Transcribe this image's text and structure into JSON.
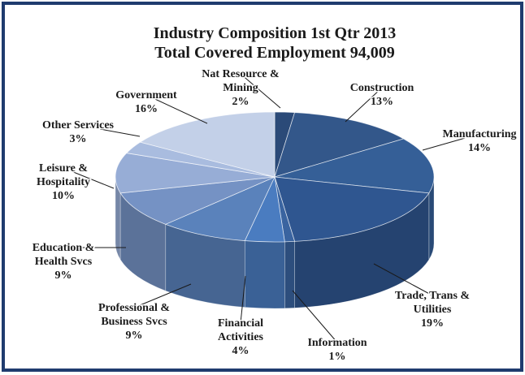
{
  "chart_data": {
    "type": "pie",
    "title": "Industry Composition 1st Qtr 2013",
    "subtitle": "Total Covered Employment 94,009",
    "slices": [
      {
        "name": [
          "Nat Resource &",
          "Mining"
        ],
        "value": 2,
        "label": "2%",
        "color": "#2b4a78"
      },
      {
        "name": [
          "Construction"
        ],
        "value": 13,
        "label": "13%",
        "color": "#33578a"
      },
      {
        "name": [
          "Manufacturing"
        ],
        "value": 14,
        "label": "14%",
        "color": "#355f97"
      },
      {
        "name": [
          "Trade, Trans &",
          "Utilities"
        ],
        "value": 19,
        "label": "19%",
        "color": "#2f5690"
      },
      {
        "name": [
          "Information"
        ],
        "value": 1,
        "label": "1%",
        "color": "#3a64a0"
      },
      {
        "name": [
          "Financial",
          "Activities"
        ],
        "value": 4,
        "label": "4%",
        "color": "#4a7cc0"
      },
      {
        "name": [
          "Professional &",
          "Business Svcs"
        ],
        "value": 9,
        "label": "9%",
        "color": "#5a82bb"
      },
      {
        "name": [
          "Education &",
          "Health Svcs"
        ],
        "value": 9,
        "label": "9%",
        "color": "#7592c4"
      },
      {
        "name": [
          "Leisure &",
          "Hospitality"
        ],
        "value": 10,
        "label": "10%",
        "color": "#97add6"
      },
      {
        "name": [
          "Other Services"
        ],
        "value": 3,
        "label": "3%",
        "color": "#a9bcdf"
      },
      {
        "name": [
          "Government"
        ],
        "value": 16,
        "label": "16%",
        "color": "#c3d0e8"
      }
    ]
  },
  "colors": {
    "frame_border": "#1f3b6e",
    "frame_bg": "#ffffff"
  }
}
